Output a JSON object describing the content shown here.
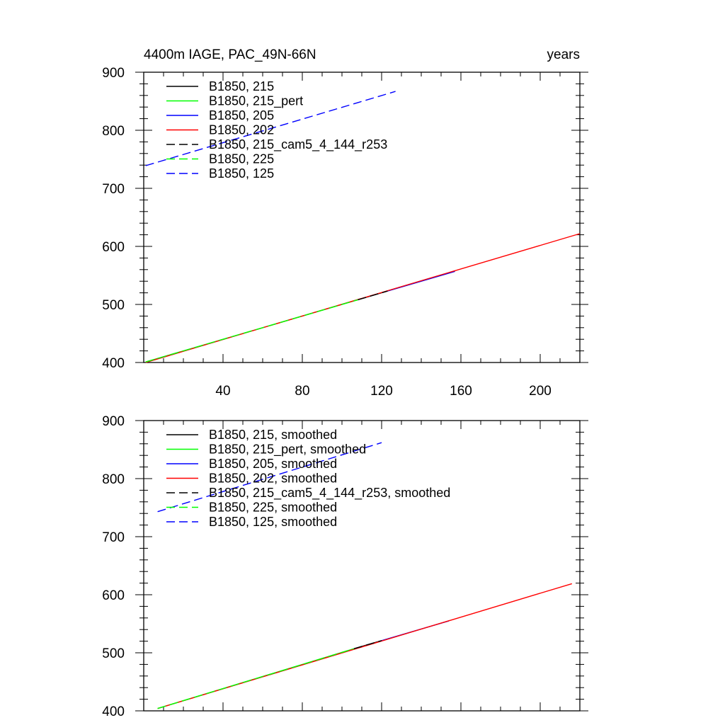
{
  "chart_data": [
    {
      "type": "line",
      "title": "4400m IAGE, PAC_49N-66N",
      "right_title": "years",
      "xlabel": "",
      "ylabel": "",
      "xlim": [
        0,
        220
      ],
      "ylim": [
        400,
        900
      ],
      "xticks": [
        40,
        80,
        120,
        160,
        200
      ],
      "yticks": [
        400,
        500,
        600,
        700,
        800,
        900
      ],
      "show_xtick_labels": true,
      "grid": false,
      "legend_position": "top-left",
      "series": [
        {
          "name": "B1850, 215",
          "color": "#000000",
          "dash": "solid",
          "x": [
            108,
            123
          ],
          "y": [
            508,
            523
          ]
        },
        {
          "name": "B1850, 215_pert",
          "color": "#00ff00",
          "dash": "solid",
          "x": [
            1,
            108
          ],
          "y": [
            401,
            508
          ]
        },
        {
          "name": "B1850, 205",
          "color": "#0000ff",
          "dash": "solid",
          "x": [
            123,
            157
          ],
          "y": [
            523,
            557
          ]
        },
        {
          "name": "B1850, 202",
          "color": "#ff0000",
          "dash": "solid",
          "x": [
            1,
            220
          ],
          "y": [
            400,
            622
          ]
        },
        {
          "name": "B1850, 215_cam5_4_144_r253",
          "color": "#000000",
          "dash": "dashed",
          "x": [
            108,
            123
          ],
          "y": [
            508,
            523
          ]
        },
        {
          "name": "B1850, 225",
          "color": "#00ff00",
          "dash": "dashed",
          "x": [
            1,
            108
          ],
          "y": [
            401,
            508
          ]
        },
        {
          "name": "B1850, 125",
          "color": "#0000ff",
          "dash": "dashed",
          "x": [
            1,
            127
          ],
          "y": [
            739,
            867
          ]
        }
      ]
    },
    {
      "type": "line",
      "title": "",
      "right_title": "",
      "xlabel": "",
      "ylabel": "",
      "xlim": [
        0,
        220
      ],
      "ylim": [
        400,
        900
      ],
      "xticks": [
        40,
        80,
        120,
        160,
        200
      ],
      "yticks": [
        400,
        500,
        600,
        700,
        800,
        900
      ],
      "show_xtick_labels": false,
      "grid": false,
      "legend_position": "top-left",
      "series": [
        {
          "name": "B1850, 215, smoothed",
          "color": "#000000",
          "dash": "solid",
          "x": [
            106,
            120
          ],
          "y": [
            507,
            521
          ]
        },
        {
          "name": "B1850, 215_pert, smoothed",
          "color": "#00ff00",
          "dash": "solid",
          "x": [
            7,
            106
          ],
          "y": [
            404,
            507
          ]
        },
        {
          "name": "B1850, 205, smoothed",
          "color": "#0000ff",
          "dash": "solid",
          "x": [
            120,
            154
          ],
          "y": [
            521,
            555
          ]
        },
        {
          "name": "B1850, 202, smoothed",
          "color": "#ff0000",
          "dash": "solid",
          "x": [
            7,
            216
          ],
          "y": [
            404,
            619
          ]
        },
        {
          "name": "B1850, 215_cam5_4_144_r253, smoothed",
          "color": "#000000",
          "dash": "dashed",
          "x": [
            106,
            120
          ],
          "y": [
            507,
            521
          ]
        },
        {
          "name": "B1850, 225, smoothed",
          "color": "#00ff00",
          "dash": "dashed",
          "x": [
            7,
            106
          ],
          "y": [
            404,
            507
          ]
        },
        {
          "name": "B1850, 125, smoothed",
          "color": "#0000ff",
          "dash": "dashed",
          "x": [
            7,
            120
          ],
          "y": [
            743,
            862
          ]
        }
      ]
    }
  ]
}
